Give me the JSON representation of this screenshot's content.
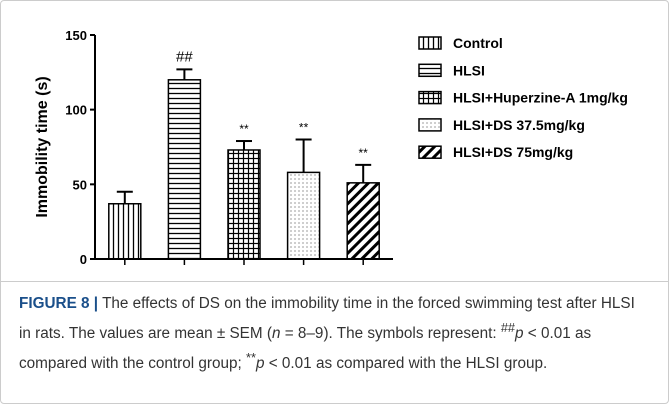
{
  "chart_data": {
    "type": "bar",
    "ylabel": "Immobility  time (s)",
    "ylim": [
      0,
      150
    ],
    "yticks": [
      0,
      50,
      100,
      150
    ],
    "color": "#000000",
    "series": [
      {
        "name": "Control",
        "pattern": "vertical",
        "values": [
          37
        ],
        "errors": [
          8
        ],
        "annotations": [
          null
        ]
      },
      {
        "name": "HLSI",
        "pattern": "horizontal",
        "values": [
          120
        ],
        "errors": [
          7
        ],
        "annotations": [
          "##"
        ]
      },
      {
        "name": "HLSI+Huperzine-A 1mg/kg",
        "pattern": "grid",
        "values": [
          73
        ],
        "errors": [
          6
        ],
        "annotations": [
          "**"
        ]
      },
      {
        "name": "HLSI+DS 37.5mg/kg",
        "pattern": "dots",
        "values": [
          58
        ],
        "errors": [
          22
        ],
        "annotations": [
          "**"
        ]
      },
      {
        "name": "HLSI+DS 75mg/kg",
        "pattern": "diagonal",
        "values": [
          51
        ],
        "errors": [
          12
        ],
        "annotations": [
          "**"
        ]
      }
    ]
  },
  "caption": {
    "label": "FIGURE 8 |",
    "parts": [
      "The effects of DS on the immobility time in the forced swimming test after HLSI in rats. The values are mean ± SEM (",
      "n",
      " = 8–9). The symbols represent: ",
      "##",
      "p",
      " < 0.01 as compared with the control group; ",
      "**",
      "p",
      " < 0.01 as compared with the HLSI group."
    ]
  }
}
